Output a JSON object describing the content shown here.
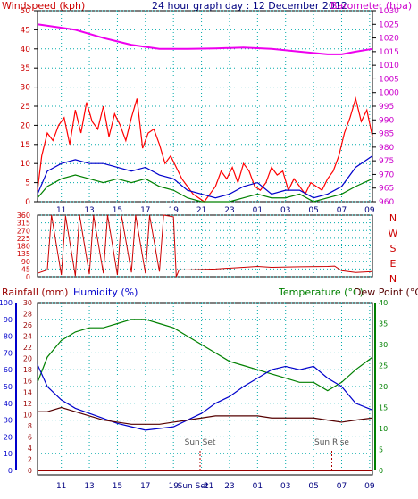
{
  "header": {
    "left_label": "Windspeed (kph)",
    "title": "24 hour graph day : 12 December 2012",
    "right_label": "Barometer (hba)"
  },
  "colors": {
    "background": "#ffffff",
    "wind": "#ff0000",
    "gust": "#ff0000",
    "avg_wind": "#0000cc",
    "wind_green": "#008000",
    "barometer": "#ee00ee",
    "direction": "#cc0000",
    "temperature": "#008000",
    "humidity": "#0000cc",
    "dewpoint": "#550000",
    "rainfall": "#990000",
    "grid": "#00aaaa",
    "left_axis_text": "#cc0000",
    "right_axis_text": "#cc00cc"
  },
  "chart_data": [
    {
      "type": "line",
      "name": "windspeed-barometer",
      "x_ticks": [
        "11",
        "13",
        "15",
        "17",
        "19",
        "21",
        "23",
        "01",
        "03",
        "05",
        "07",
        "09"
      ],
      "ylabel_left": "Windspeed (kph)",
      "ylim_left": [
        0,
        50
      ],
      "yticks_left": [
        0,
        5,
        10,
        15,
        20,
        25,
        30,
        35,
        40,
        45,
        50
      ],
      "ylabel_right": "Barometer (hba)",
      "ylim_right": [
        960,
        1030
      ],
      "yticks_right": [
        960,
        965,
        970,
        975,
        980,
        985,
        990,
        995,
        1000,
        1005,
        1010,
        1015,
        1020,
        1025,
        1030
      ],
      "series": [
        {
          "role": "barometer",
          "x": [
            9.3,
            12,
            14,
            16,
            18,
            20,
            22,
            24,
            26,
            28,
            30,
            31,
            32,
            33.2
          ],
          "values": [
            1025,
            1023,
            1020,
            1017.5,
            1016,
            1016,
            1016.2,
            1016.5,
            1016,
            1015,
            1014,
            1014,
            1015,
            1016
          ]
        },
        {
          "role": "gust",
          "x": [
            9.3,
            9.6,
            10,
            10.4,
            10.8,
            11.2,
            11.6,
            12,
            12.4,
            12.8,
            13.2,
            13.6,
            14,
            14.4,
            14.8,
            15.2,
            15.6,
            16,
            16.4,
            16.8,
            17.2,
            17.6,
            18,
            18.4,
            18.8,
            19.2,
            19.6,
            20,
            20.4,
            20.8,
            21.2,
            21.6,
            22,
            22.4,
            22.8,
            23.2,
            23.6,
            24,
            24.4,
            24.8,
            25.2,
            25.6,
            26,
            26.4,
            26.8,
            27.2,
            27.6,
            28,
            28.4,
            28.8,
            29.2,
            29.6,
            30,
            30.4,
            30.8,
            31.2,
            31.6,
            32,
            32.4,
            32.8,
            33.2
          ],
          "values": [
            3,
            12,
            18,
            16,
            20,
            22,
            15,
            24,
            18,
            26,
            21,
            19,
            25,
            17,
            23,
            20,
            16,
            22,
            27,
            14,
            18,
            19,
            15,
            10,
            12,
            9,
            6,
            4,
            2,
            1,
            0,
            2,
            4,
            8,
            6,
            9,
            5,
            10,
            8,
            4,
            3,
            5,
            9,
            7,
            8,
            3,
            6,
            4,
            2,
            5,
            4,
            3,
            6,
            8,
            12,
            18,
            22,
            27,
            21,
            24,
            17
          ]
        },
        {
          "role": "avg_wind",
          "x": [
            9.3,
            10,
            11,
            12,
            13,
            14,
            15,
            16,
            17,
            18,
            19,
            20,
            21,
            22,
            23,
            24,
            25,
            26,
            27,
            28,
            29,
            30,
            31,
            32,
            33.2
          ],
          "values": [
            2,
            8,
            10,
            11,
            10,
            10,
            9,
            8,
            9,
            7,
            6,
            3,
            2,
            1,
            2,
            4,
            5,
            2,
            3,
            3,
            1,
            2,
            4,
            9,
            12
          ]
        },
        {
          "role": "wind_green",
          "x": [
            9.3,
            10,
            11,
            12,
            13,
            14,
            15,
            16,
            17,
            18,
            19,
            20,
            21,
            22,
            23,
            24,
            25,
            26,
            27,
            28,
            29,
            30,
            31,
            32,
            33.2
          ],
          "values": [
            1,
            4,
            6,
            7,
            6,
            5,
            6,
            5,
            6,
            4,
            3,
            1,
            0,
            0,
            0,
            1,
            2,
            1,
            1,
            2,
            0,
            1,
            2,
            4,
            6
          ]
        }
      ]
    },
    {
      "type": "line",
      "name": "wind-direction",
      "x_ticks": [
        "11",
        "13",
        "15",
        "17",
        "19",
        "21",
        "23",
        "01",
        "03",
        "05",
        "07",
        "09"
      ],
      "ylim": [
        0,
        360
      ],
      "yticks": [
        0,
        45,
        90,
        135,
        180,
        225,
        270,
        315,
        360
      ],
      "compass_labels": [
        "N",
        "W",
        "S",
        "E",
        "N"
      ],
      "series": [
        {
          "role": "direction",
          "x": [
            9.3,
            10,
            10.3,
            11,
            11.3,
            12,
            12.3,
            13,
            13.3,
            14,
            14.3,
            15,
            15.3,
            16,
            16.3,
            17,
            17.3,
            18,
            18.3,
            19,
            19.2,
            19.4,
            20,
            22,
            24,
            25,
            26,
            28,
            30,
            30.5,
            31,
            32,
            33.2
          ],
          "values": [
            20,
            40,
            360,
            10,
            355,
            5,
            360,
            15,
            358,
            20,
            360,
            10,
            355,
            25,
            360,
            20,
            358,
            30,
            360,
            350,
            0,
            40,
            40,
            45,
            55,
            60,
            55,
            58,
            60,
            62,
            35,
            25,
            30
          ]
        }
      ]
    },
    {
      "type": "line",
      "name": "temperature-humidity",
      "header_left": "Rainfall (mm)",
      "header_left2": "Humidity (%)",
      "header_right": "Temperature (°C)",
      "header_right2": "Dew Point (°C)",
      "x_ticks": [
        "11",
        "13",
        "15",
        "17",
        "19",
        "Sun Set",
        "21",
        "23",
        "01",
        "03",
        "05",
        "07",
        "09"
      ],
      "ylim_humidity": [
        0,
        100
      ],
      "yticks_humidity": [
        0,
        10,
        20,
        30,
        40,
        50,
        60,
        70,
        80,
        90,
        100
      ],
      "ylim_rain": [
        0,
        30
      ],
      "yticks_rain": [
        0,
        2,
        4,
        6,
        8,
        10,
        12,
        14,
        16,
        18,
        20,
        22,
        24,
        26,
        28,
        30
      ],
      "ylim_temp": [
        0,
        40
      ],
      "yticks_temp": [
        0,
        5,
        10,
        15,
        20,
        25,
        30,
        35,
        40
      ],
      "annotations": [
        "Sun Set",
        "Sun Rise"
      ],
      "series": [
        {
          "role": "temperature",
          "x": [
            9.3,
            10,
            11,
            12,
            13,
            14,
            15,
            16,
            17,
            18,
            19,
            20,
            21,
            22,
            23,
            24,
            25,
            26,
            27,
            28,
            29,
            30,
            31,
            32,
            33.2
          ],
          "values": [
            21,
            27,
            31,
            33,
            34,
            34,
            35,
            36,
            36,
            35,
            34,
            32,
            30,
            28,
            26,
            25,
            24,
            23,
            22,
            21,
            21,
            19,
            21,
            24,
            27
          ]
        },
        {
          "role": "humidity",
          "x": [
            9.3,
            10,
            11,
            12,
            13,
            14,
            15,
            16,
            17,
            18,
            19,
            20,
            21,
            22,
            23,
            24,
            25,
            26,
            27,
            28,
            29,
            30,
            31,
            32,
            33.2
          ],
          "values": [
            63,
            50,
            42,
            37,
            34,
            31,
            28,
            26,
            24,
            25,
            26,
            30,
            34,
            40,
            44,
            50,
            55,
            60,
            62,
            60,
            62,
            55,
            50,
            40,
            36
          ]
        },
        {
          "role": "dewpoint",
          "x": [
            9.3,
            10,
            11,
            12,
            13,
            14,
            15,
            16,
            17,
            18,
            19,
            20,
            21,
            22,
            23,
            24,
            25,
            26,
            27,
            28,
            29,
            30,
            31,
            32,
            33.2
          ],
          "values": [
            14,
            14,
            15,
            14,
            13,
            12,
            11.5,
            11,
            11,
            11,
            11.5,
            12,
            12.5,
            13,
            13,
            13,
            13,
            12.5,
            12.5,
            12.5,
            12.5,
            12,
            11.5,
            12,
            12.5
          ]
        },
        {
          "role": "rainfall",
          "x": [
            9.3,
            33.2
          ],
          "values": [
            0,
            0
          ]
        }
      ]
    }
  ]
}
